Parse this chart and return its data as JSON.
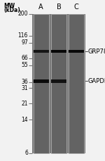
{
  "bg_color": "#7a7a7a",
  "lane_color": "#636363",
  "lane_border_color": "#aaaaaa",
  "fig_bg": "#f2f2f2",
  "mw_labels": [
    "200",
    "116",
    "97",
    "66",
    "55",
    "36",
    "31",
    "21",
    "14",
    "6"
  ],
  "mw_values": [
    200,
    116,
    97,
    66,
    55,
    36,
    31,
    21,
    14,
    6
  ],
  "lane_labels": [
    "A",
    "B",
    "C"
  ],
  "band_annotations": [
    {
      "label": "GRP78",
      "mw": 78,
      "lanes": [
        0,
        1,
        2
      ],
      "intensities": [
        0.55,
        0.85,
        0.8
      ]
    },
    {
      "label": "GAPDH",
      "mw": 37,
      "lanes": [
        0,
        1
      ],
      "intensities": [
        0.75,
        0.6
      ]
    }
  ],
  "mw_header_line1": "MW",
  "mw_header_line2": "(kDa)"
}
